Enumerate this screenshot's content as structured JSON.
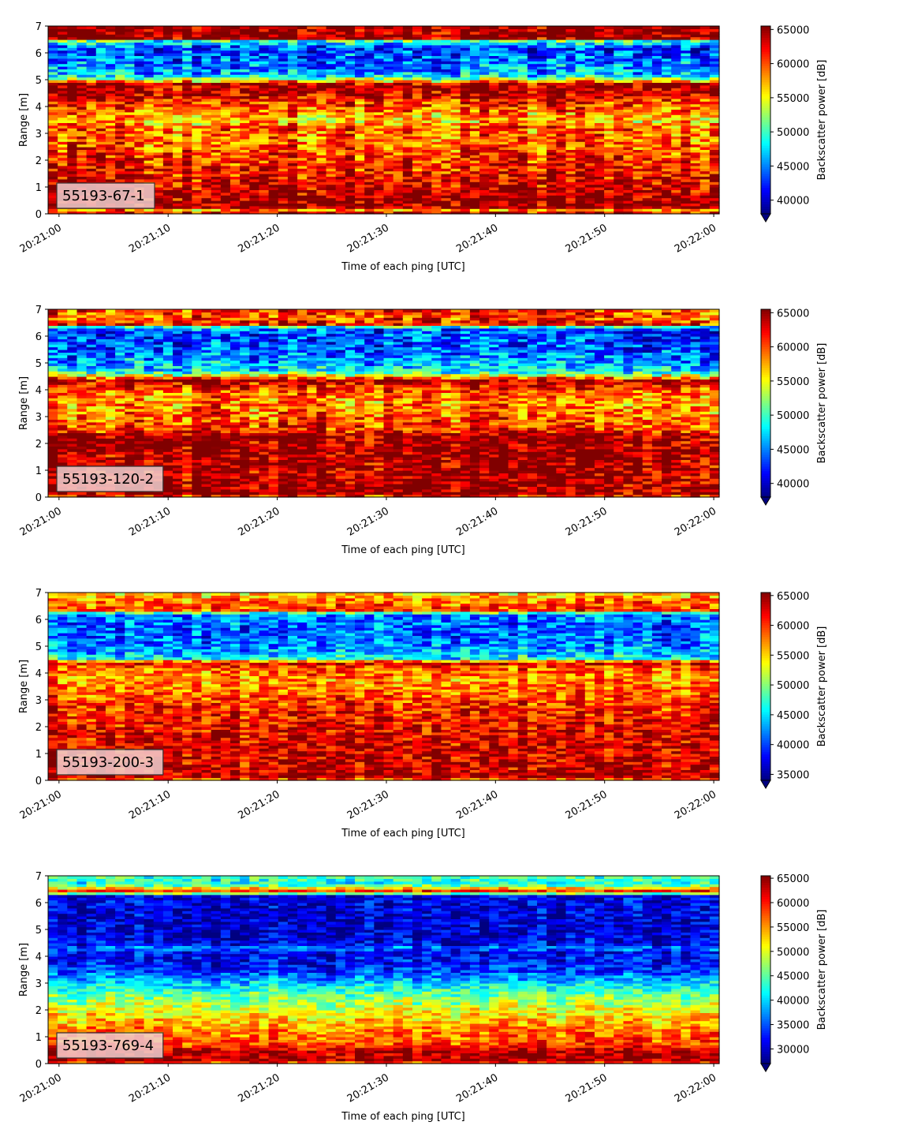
{
  "chart_data": [
    {
      "type": "heatmap",
      "label": "55193-67-1",
      "xlabel": "Time of each ping [UTC]",
      "ylabel": "Range [m]",
      "xticks": [
        "20:21:00",
        "20:21:10",
        "20:21:20",
        "20:21:30",
        "20:21:40",
        "20:21:50",
        "20:22:00"
      ],
      "x_range_seconds": [
        -1,
        60.5
      ],
      "yticks": [
        "0",
        "1",
        "2",
        "3",
        "4",
        "5",
        "6",
        "7"
      ],
      "ylim": [
        0,
        7
      ],
      "colorbar_label": "Backscatter power [dB]",
      "colorbar_ticks": [
        "40000",
        "45000",
        "50000",
        "55000",
        "60000",
        "65000"
      ],
      "clim": [
        38000,
        65500
      ],
      "colormap": "jet",
      "colorbar_extend": "min",
      "profile_m": [
        [
          0.0,
          65000
        ],
        [
          0.15,
          58000
        ],
        [
          0.25,
          65000
        ],
        [
          0.9,
          64000
        ],
        [
          1.2,
          63000
        ],
        [
          1.6,
          62000
        ],
        [
          2.0,
          61000
        ],
        [
          2.4,
          60000
        ],
        [
          2.8,
          59000
        ],
        [
          3.2,
          60000
        ],
        [
          3.5,
          56000
        ],
        [
          3.8,
          59000
        ],
        [
          4.2,
          61000
        ],
        [
          4.5,
          64500
        ],
        [
          4.85,
          64000
        ],
        [
          5.0,
          54000
        ],
        [
          5.2,
          46000
        ],
        [
          5.8,
          44000
        ],
        [
          6.2,
          43000
        ],
        [
          6.45,
          50000
        ],
        [
          6.55,
          65000
        ],
        [
          7.0,
          65000
        ]
      ]
    },
    {
      "type": "heatmap",
      "label": "55193-120-2",
      "xlabel": "Time of each ping [UTC]",
      "ylabel": "Range [m]",
      "xticks": [
        "20:21:00",
        "20:21:10",
        "20:21:20",
        "20:21:30",
        "20:21:40",
        "20:21:50",
        "20:22:00"
      ],
      "x_range_seconds": [
        -1,
        60.5
      ],
      "yticks": [
        "0",
        "1",
        "2",
        "3",
        "4",
        "5",
        "6",
        "7"
      ],
      "ylim": [
        0,
        7
      ],
      "colorbar_label": "Backscatter power [dB]",
      "colorbar_ticks": [
        "40000",
        "45000",
        "50000",
        "55000",
        "60000",
        "65000"
      ],
      "clim": [
        38000,
        65500
      ],
      "colormap": "jet",
      "colorbar_extend": "min",
      "profile_m": [
        [
          0.0,
          58000
        ],
        [
          0.1,
          65000
        ],
        [
          1.0,
          64500
        ],
        [
          2.3,
          65000
        ],
        [
          2.5,
          61000
        ],
        [
          2.8,
          60000
        ],
        [
          3.2,
          59000
        ],
        [
          3.6,
          58000
        ],
        [
          4.0,
          60000
        ],
        [
          4.35,
          64000
        ],
        [
          4.5,
          57000
        ],
        [
          4.7,
          48000
        ],
        [
          5.2,
          45000
        ],
        [
          5.8,
          43000
        ],
        [
          6.3,
          44000
        ],
        [
          6.45,
          62000
        ],
        [
          6.7,
          60000
        ],
        [
          7.0,
          61000
        ]
      ]
    },
    {
      "type": "heatmap",
      "label": "55193-200-3",
      "xlabel": "Time of each ping [UTC]",
      "ylabel": "Range [m]",
      "xticks": [
        "20:21:00",
        "20:21:10",
        "20:21:20",
        "20:21:30",
        "20:21:40",
        "20:21:50",
        "20:22:00"
      ],
      "x_range_seconds": [
        -1,
        60.5
      ],
      "yticks": [
        "0",
        "1",
        "2",
        "3",
        "4",
        "5",
        "6",
        "7"
      ],
      "ylim": [
        0,
        7
      ],
      "colorbar_label": "Backscatter power [dB]",
      "colorbar_ticks": [
        "35000",
        "40000",
        "45000",
        "50000",
        "55000",
        "60000",
        "65000"
      ],
      "clim": [
        34000,
        65500
      ],
      "colormap": "jet",
      "colorbar_extend": "min",
      "profile_m": [
        [
          0.0,
          57000
        ],
        [
          0.15,
          64000
        ],
        [
          0.6,
          63000
        ],
        [
          1.2,
          63000
        ],
        [
          2.0,
          62000
        ],
        [
          2.6,
          61000
        ],
        [
          3.2,
          59000
        ],
        [
          3.8,
          57000
        ],
        [
          4.2,
          59000
        ],
        [
          4.4,
          63000
        ],
        [
          4.55,
          46000
        ],
        [
          5.0,
          42000
        ],
        [
          5.6,
          41000
        ],
        [
          6.2,
          42000
        ],
        [
          6.35,
          60000
        ],
        [
          6.7,
          58000
        ],
        [
          7.0,
          55000
        ]
      ]
    },
    {
      "type": "heatmap",
      "label": "55193-769-4",
      "xlabel": "Time of each ping [UTC]",
      "ylabel": "Range [m]",
      "xticks": [
        "20:21:00",
        "20:21:10",
        "20:21:20",
        "20:21:30",
        "20:21:40",
        "20:21:50",
        "20:22:00"
      ],
      "x_range_seconds": [
        -1,
        60.5
      ],
      "yticks": [
        "0",
        "1",
        "2",
        "3",
        "4",
        "5",
        "6",
        "7"
      ],
      "ylim": [
        0,
        7
      ],
      "colorbar_label": "Backscatter power [dB]",
      "colorbar_ticks": [
        "30000",
        "35000",
        "40000",
        "45000",
        "50000",
        "55000",
        "60000",
        "65000"
      ],
      "clim": [
        27000,
        65500
      ],
      "colormap": "jet",
      "colorbar_extend": "min",
      "profile_m": [
        [
          0.0,
          55000
        ],
        [
          0.12,
          64000
        ],
        [
          0.5,
          63000
        ],
        [
          0.7,
          58000
        ],
        [
          1.2,
          56000
        ],
        [
          1.8,
          52000
        ],
        [
          2.5,
          46000
        ],
        [
          3.0,
          40000
        ],
        [
          3.5,
          33000
        ],
        [
          4.2,
          31000
        ],
        [
          4.3,
          38000
        ],
        [
          4.45,
          31000
        ],
        [
          5.2,
          29500
        ],
        [
          6.0,
          30500
        ],
        [
          6.3,
          31000
        ],
        [
          6.4,
          62000
        ],
        [
          6.55,
          52000
        ],
        [
          6.7,
          42000
        ],
        [
          7.0,
          44000
        ]
      ]
    }
  ]
}
